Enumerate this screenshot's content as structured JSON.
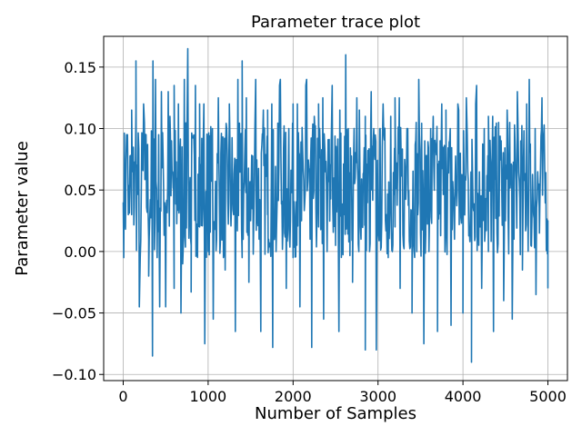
{
  "chart_data": {
    "type": "line",
    "title": "Parameter trace plot",
    "xlabel": "Number of Samples",
    "ylabel": "Parameter value",
    "xlim": [
      -230,
      5230
    ],
    "ylim": [
      -0.105,
      0.175
    ],
    "xticks": [
      0,
      1000,
      2000,
      3000,
      4000,
      5000
    ],
    "xtick_labels": [
      "0",
      "1000",
      "2000",
      "3000",
      "4000",
      "5000"
    ],
    "yticks": [
      -0.1,
      -0.05,
      0.0,
      0.05,
      0.1,
      0.15
    ],
    "ytick_labels": [
      "−0.10",
      "−0.05",
      "0.00",
      "0.05",
      "0.10",
      "0.15"
    ],
    "grid": true,
    "legend": false,
    "color": "#1f77b4",
    "series": [
      {
        "x_start": 0,
        "x_step": 50,
        "values": [
          0.04,
          0.095,
          0.03,
          0.115,
          -0.005,
          0.105,
          0.01,
          0.155,
          -0.005,
          0.13,
          -0.045,
          0.11,
          -0.03,
          0.12,
          -0.01,
          0.09,
          0.005,
          0.135,
          0.02,
          0.12,
          0.0,
          0.1,
          0.01,
          0.08,
          -0.015,
          0.11,
          0.03,
          0.14,
          -0.005,
          0.125,
          0.025,
          0.1,
          0.01,
          0.115,
          0.03,
          0.12,
          0.0,
          0.14,
          0.015,
          0.1,
          -0.005,
          0.12,
          0.025,
          0.135,
          0.01,
          0.11,
          0.02,
          0.125,
          0.0,
          0.09,
          0.005,
          0.115,
          0.03,
          0.1,
          0.025,
          0.125,
          0.01,
          0.11,
          0.0,
          0.1,
          0.015,
          0.085,
          0.03,
          0.11,
          0.02,
          0.125,
          0.005,
          0.1,
          0.025,
          0.105,
          0.015,
          0.09,
          0.0,
          0.11,
          0.03,
          0.12,
          0.02,
          0.1,
          0.01,
          0.115,
          0.025,
          0.095,
          0.005,
          0.12,
          0.02,
          0.1,
          0.0,
          0.11,
          0.015,
          0.09,
          0.025,
          0.105,
          0.01,
          0.095,
          0.02,
          0.12,
          0.005,
          0.1,
          0.015,
          0.095,
          0.025
        ]
      }
    ],
    "trace_extremes": [
      [
        0,
        0.04
      ],
      [
        40,
        0.095
      ],
      [
        60,
        0.03
      ],
      [
        100,
        0.115
      ],
      [
        150,
        0.155
      ],
      [
        190,
        -0.045
      ],
      [
        240,
        0.12
      ],
      [
        300,
        -0.02
      ],
      [
        345,
        -0.085
      ],
      [
        380,
        0.14
      ],
      [
        430,
        -0.045
      ],
      [
        470,
        0.075
      ],
      [
        530,
        0.13
      ],
      [
        600,
        0.135
      ],
      [
        680,
        -0.05
      ],
      [
        720,
        0.14
      ],
      [
        760,
        0.165
      ],
      [
        800,
        -0.033
      ],
      [
        900,
        0.12
      ],
      [
        960,
        -0.075
      ],
      [
        1000,
        0.09
      ],
      [
        1060,
        -0.055
      ],
      [
        1120,
        0.125
      ],
      [
        1180,
        -0.005
      ],
      [
        1250,
        0.12
      ],
      [
        1320,
        -0.065
      ],
      [
        1400,
        0.155
      ],
      [
        1480,
        -0.025
      ],
      [
        1560,
        0.14
      ],
      [
        1620,
        -0.065
      ],
      [
        1700,
        0.115
      ],
      [
        1760,
        -0.078
      ],
      [
        1840,
        0.135
      ],
      [
        1920,
        -0.03
      ],
      [
        2000,
        0.12
      ],
      [
        2080,
        -0.045
      ],
      [
        2160,
        0.14
      ],
      [
        2220,
        -0.078
      ],
      [
        2300,
        0.12
      ],
      [
        2360,
        -0.055
      ],
      [
        2460,
        0.135
      ],
      [
        2540,
        -0.065
      ],
      [
        2620,
        0.16
      ],
      [
        2700,
        -0.025
      ],
      [
        2780,
        0.115
      ],
      [
        2850,
        -0.08
      ],
      [
        2920,
        0.13
      ],
      [
        2980,
        -0.08
      ],
      [
        3060,
        0.12
      ],
      [
        3120,
        -0.005
      ],
      [
        3200,
        0.125
      ],
      [
        3260,
        -0.03
      ],
      [
        3340,
        0.1
      ],
      [
        3400,
        -0.05
      ],
      [
        3480,
        0.14
      ],
      [
        3540,
        -0.075
      ],
      [
        3620,
        0.1
      ],
      [
        3700,
        -0.065
      ],
      [
        3800,
        0.115
      ],
      [
        3860,
        -0.06
      ],
      [
        3940,
        0.12
      ],
      [
        4000,
        -0.05
      ],
      [
        4040,
        0.125
      ],
      [
        4100,
        -0.09
      ],
      [
        4160,
        0.135
      ],
      [
        4220,
        -0.03
      ],
      [
        4300,
        0.11
      ],
      [
        4360,
        -0.065
      ],
      [
        4420,
        0.105
      ],
      [
        4480,
        -0.04
      ],
      [
        4520,
        0.115
      ],
      [
        4580,
        -0.055
      ],
      [
        4640,
        0.13
      ],
      [
        4700,
        -0.015
      ],
      [
        4780,
        0.14
      ],
      [
        4860,
        -0.035
      ],
      [
        4930,
        0.125
      ],
      [
        5000,
        -0.03
      ]
    ]
  }
}
